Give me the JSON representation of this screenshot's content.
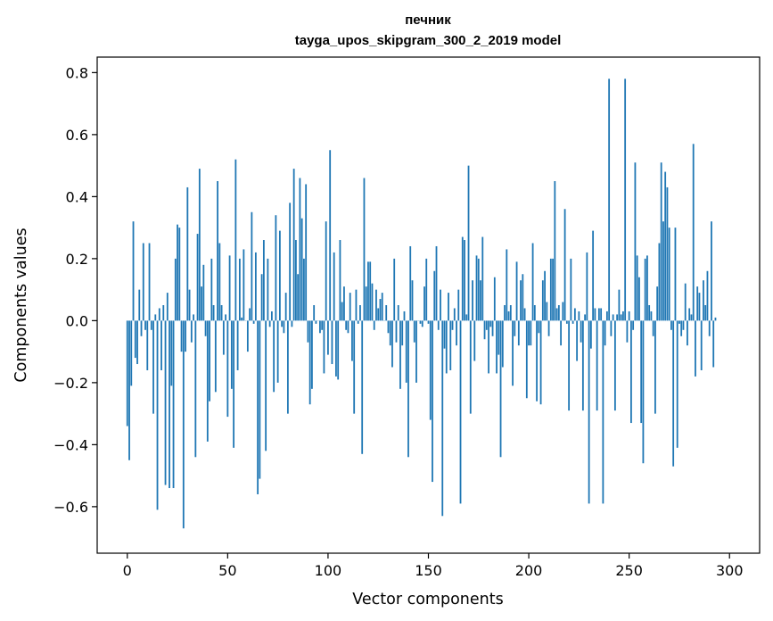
{
  "chart_data": {
    "type": "bar",
    "title_line1": "печник",
    "title_line2": "tayga_upos_skipgram_300_2_2019 model",
    "xlabel": "Vector components",
    "ylabel": "Components values",
    "xlim": [
      -15,
      315
    ],
    "ylim": [
      -0.75,
      0.85
    ],
    "xticks": [
      0,
      50,
      100,
      150,
      200,
      250,
      300
    ],
    "xtick_labels": [
      "0",
      "50",
      "100",
      "150",
      "200",
      "250",
      "300"
    ],
    "yticks": [
      -0.6,
      -0.4,
      -0.2,
      0.0,
      0.2,
      0.4,
      0.6,
      0.8
    ],
    "ytick_labels": [
      "−0.6",
      "−0.4",
      "−0.2",
      "0.0",
      "0.2",
      "0.4",
      "0.6",
      "0.8"
    ],
    "bar_color": "#1f77b4",
    "values": [
      -0.34,
      -0.45,
      -0.21,
      0.32,
      -0.12,
      -0.14,
      0.1,
      -0.05,
      0.25,
      -0.03,
      -0.16,
      0.25,
      -0.03,
      -0.3,
      0.02,
      -0.61,
      0.04,
      -0.16,
      0.05,
      -0.53,
      0.09,
      -0.54,
      -0.21,
      -0.54,
      0.2,
      0.31,
      0.3,
      -0.1,
      -0.67,
      -0.1,
      0.43,
      0.1,
      -0.07,
      0.02,
      -0.44,
      0.28,
      0.49,
      0.11,
      0.18,
      -0.05,
      -0.39,
      -0.26,
      0.2,
      0.05,
      -0.23,
      0.45,
      0.25,
      0.05,
      -0.11,
      0.02,
      -0.31,
      0.21,
      -0.22,
      -0.41,
      0.52,
      -0.16,
      0.2,
      0.01,
      0.23,
      0.0,
      -0.1,
      0.04,
      0.35,
      -0.01,
      0.22,
      -0.56,
      -0.51,
      0.15,
      0.26,
      -0.42,
      0.2,
      -0.02,
      0.03,
      -0.23,
      0.34,
      -0.2,
      0.29,
      -0.02,
      -0.04,
      0.09,
      -0.3,
      0.38,
      -0.02,
      0.49,
      0.26,
      0.15,
      0.46,
      0.33,
      0.2,
      0.44,
      -0.07,
      -0.27,
      -0.22,
      0.05,
      -0.01,
      0.0,
      -0.04,
      -0.03,
      -0.17,
      0.32,
      -0.11,
      0.55,
      -0.14,
      0.22,
      -0.18,
      -0.19,
      0.26,
      0.06,
      0.11,
      -0.03,
      -0.04,
      0.09,
      -0.13,
      -0.3,
      0.1,
      -0.01,
      0.05,
      -0.43,
      0.46,
      0.11,
      0.19,
      0.19,
      0.12,
      -0.03,
      0.1,
      0.04,
      0.07,
      0.09,
      0.0,
      0.05,
      -0.04,
      -0.08,
      -0.15,
      0.2,
      -0.07,
      0.05,
      -0.22,
      -0.08,
      0.03,
      -0.2,
      -0.44,
      0.24,
      0.13,
      -0.07,
      -0.2,
      0.0,
      -0.01,
      -0.02,
      0.11,
      0.2,
      -0.01,
      -0.32,
      -0.52,
      0.16,
      0.24,
      -0.03,
      0.1,
      -0.63,
      -0.09,
      -0.17,
      0.09,
      -0.16,
      -0.03,
      0.04,
      -0.08,
      0.1,
      -0.59,
      0.27,
      0.26,
      0.02,
      0.5,
      -0.3,
      0.13,
      -0.13,
      0.21,
      0.2,
      0.13,
      0.27,
      -0.06,
      -0.03,
      -0.17,
      -0.02,
      -0.05,
      0.14,
      -0.17,
      -0.11,
      -0.44,
      -0.15,
      0.05,
      0.23,
      0.03,
      0.05,
      -0.21,
      -0.05,
      0.19,
      -0.08,
      0.13,
      0.15,
      0.04,
      -0.25,
      -0.08,
      -0.08,
      0.25,
      0.05,
      -0.26,
      -0.04,
      -0.27,
      0.13,
      0.16,
      0.06,
      -0.05,
      0.2,
      0.2,
      0.45,
      0.04,
      0.05,
      -0.08,
      0.06,
      0.36,
      -0.01,
      -0.29,
      0.2,
      -0.01,
      0.04,
      -0.13,
      0.03,
      -0.07,
      -0.29,
      0.02,
      0.22,
      -0.59,
      -0.09,
      0.29,
      0.04,
      -0.29,
      0.04,
      0.04,
      -0.59,
      -0.08,
      0.03,
      0.78,
      -0.05,
      0.02,
      -0.29,
      0.02,
      0.1,
      0.02,
      0.03,
      0.78,
      -0.07,
      0.03,
      -0.33,
      -0.03,
      0.51,
      0.21,
      0.14,
      -0.33,
      -0.46,
      0.2,
      0.21,
      0.05,
      0.03,
      -0.05,
      -0.3,
      0.11,
      0.25,
      0.51,
      0.32,
      0.48,
      0.43,
      0.3,
      -0.03,
      -0.47,
      0.3,
      -0.41,
      -0.01,
      -0.05,
      -0.03,
      0.12,
      -0.08,
      0.04,
      0.02,
      0.57,
      -0.18,
      0.11,
      0.09,
      -0.16,
      0.13,
      0.05,
      0.16,
      -0.05,
      0.32,
      -0.15,
      0.01
    ],
    "grid": false,
    "legend": "none"
  }
}
